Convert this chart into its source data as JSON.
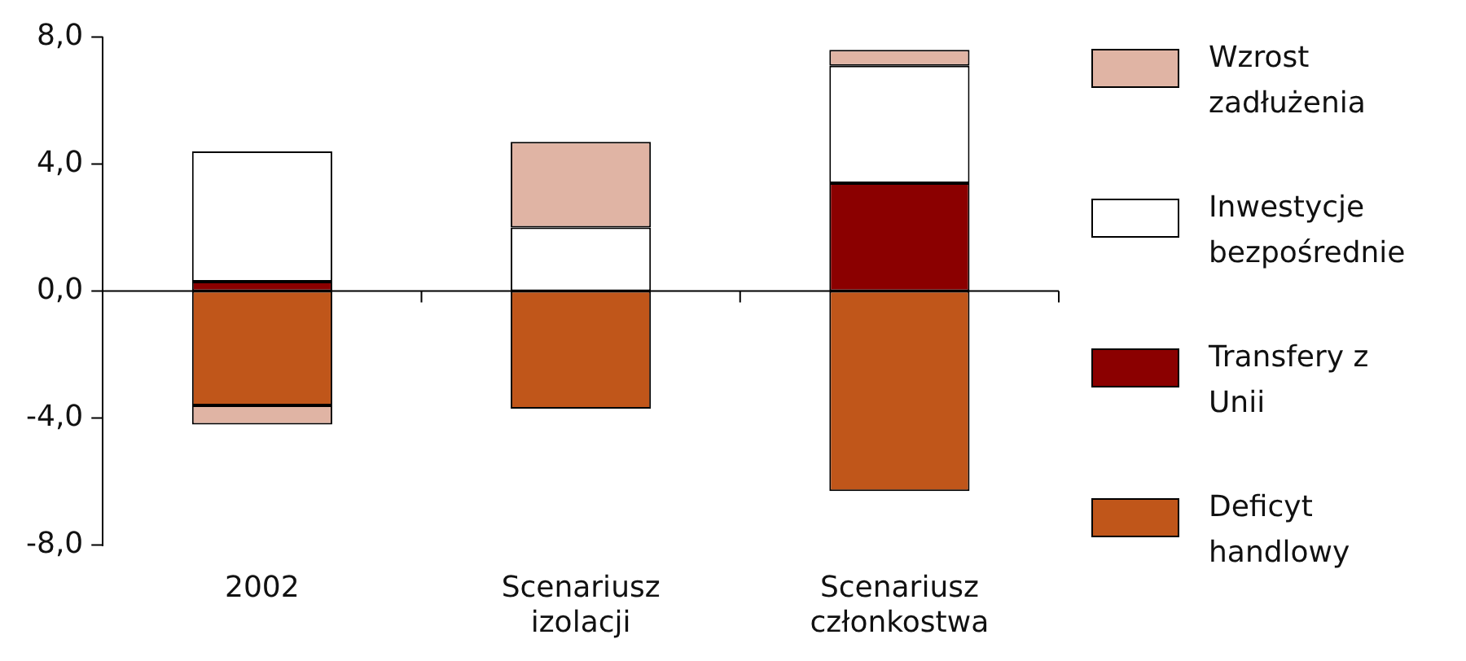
{
  "chart_data": {
    "type": "bar",
    "stacked": true,
    "categories": [
      "2002",
      "Scenariusz izolacji",
      "Scenariusz członkostwa"
    ],
    "series": [
      {
        "name": "Deficyt handlowy",
        "color": "#c0561a",
        "values": [
          -3.6,
          -3.7,
          -6.3
        ]
      },
      {
        "name": "Transfery z Unii",
        "color": "#8b0000",
        "values": [
          0.3,
          0,
          3.4
        ]
      },
      {
        "name": "Inwestycje bezpośrednie",
        "color": "#ffffff",
        "values": [
          4.1,
          2.0,
          3.7
        ]
      },
      {
        "name": "Wzrost zadłużenia",
        "color": "#e0b4a4",
        "values": [
          -0.6,
          2.7,
          0.5
        ]
      }
    ],
    "ylim": [
      -8,
      8
    ],
    "yticks": [
      {
        "value": -8,
        "label": "-8,0"
      },
      {
        "value": -4,
        "label": "-4,0"
      },
      {
        "value": 0,
        "label": "0,0"
      },
      {
        "value": 4,
        "label": "4,0"
      },
      {
        "value": 8,
        "label": "8,0"
      }
    ],
    "ref_lines": [
      {
        "axis": "y",
        "value": 0,
        "color": "#000000"
      }
    ],
    "grid": false,
    "legend": "right"
  }
}
